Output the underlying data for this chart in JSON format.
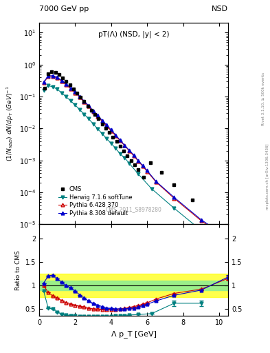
{
  "title_top": "7000 GeV pp",
  "title_right": "NSD",
  "annotation": "pT(Λ) (NSD, |y| < 2)",
  "watermark": "CMS_2011_S8978280",
  "right_label": "mcplots.cern.ch [arXiv:1306.3436]",
  "right_label2": "Rivet 3.1.10, ≥ 500k events",
  "xlabel": "Λ p_T [GeV]",
  "ylabel_main": "(1/N_{NSD}) dN/dp_T (GeV)^{-1}",
  "ylabel_ratio": "Ratio to CMS",
  "cms_x": [
    0.3,
    0.5,
    0.7,
    0.9,
    1.1,
    1.3,
    1.5,
    1.7,
    1.9,
    2.1,
    2.3,
    2.5,
    2.7,
    2.9,
    3.1,
    3.3,
    3.5,
    3.7,
    3.9,
    4.1,
    4.3,
    4.5,
    4.7,
    4.9,
    5.1,
    5.3,
    5.5,
    5.8,
    6.2,
    6.8,
    7.5,
    8.5
  ],
  "cms_y": [
    0.18,
    0.52,
    0.6,
    0.56,
    0.48,
    0.39,
    0.3,
    0.23,
    0.175,
    0.13,
    0.095,
    0.07,
    0.05,
    0.037,
    0.027,
    0.02,
    0.014,
    0.01,
    0.0074,
    0.0054,
    0.0039,
    0.0028,
    0.002,
    0.0014,
    0.001,
    0.00072,
    0.00051,
    0.0003,
    0.00085,
    0.00042,
    0.000175,
    5.8e-05
  ],
  "herwig_x": [
    0.25,
    0.5,
    0.75,
    1.0,
    1.25,
    1.5,
    1.75,
    2.0,
    2.25,
    2.5,
    2.75,
    3.0,
    3.25,
    3.5,
    3.75,
    4.0,
    4.25,
    4.5,
    4.75,
    5.0,
    5.5,
    6.25,
    7.5,
    9.0
  ],
  "herwig_y": [
    0.16,
    0.22,
    0.2,
    0.17,
    0.13,
    0.098,
    0.073,
    0.054,
    0.039,
    0.028,
    0.02,
    0.014,
    0.0098,
    0.0069,
    0.0048,
    0.0034,
    0.0024,
    0.0016,
    0.0012,
    0.00082,
    0.00038,
    0.00013,
    3.2e-05,
    6.5e-06
  ],
  "pythia6_x": [
    0.25,
    0.5,
    0.75,
    1.0,
    1.25,
    1.5,
    1.75,
    2.0,
    2.25,
    2.5,
    2.75,
    3.0,
    3.25,
    3.5,
    3.75,
    4.0,
    4.25,
    4.5,
    4.75,
    5.0,
    5.25,
    5.5,
    5.75,
    6.0,
    6.5,
    7.5,
    9.0,
    10.5
  ],
  "pythia6_y": [
    0.27,
    0.42,
    0.43,
    0.38,
    0.3,
    0.23,
    0.175,
    0.13,
    0.095,
    0.068,
    0.049,
    0.034,
    0.024,
    0.017,
    0.012,
    0.0084,
    0.0059,
    0.0041,
    0.0029,
    0.002,
    0.0014,
    0.00096,
    0.00066,
    0.00045,
    0.00021,
    6.5e-05,
    1.3e-05,
    3.5e-06
  ],
  "pythia8_x": [
    0.25,
    0.5,
    0.75,
    1.0,
    1.25,
    1.5,
    1.75,
    2.0,
    2.25,
    2.5,
    2.75,
    3.0,
    3.25,
    3.5,
    3.75,
    4.0,
    4.25,
    4.5,
    4.75,
    5.0,
    5.25,
    5.5,
    5.75,
    6.0,
    6.5,
    7.5,
    9.0,
    10.5
  ],
  "pythia8_y": [
    0.28,
    0.44,
    0.45,
    0.4,
    0.32,
    0.25,
    0.185,
    0.138,
    0.1,
    0.072,
    0.052,
    0.036,
    0.026,
    0.018,
    0.013,
    0.009,
    0.0063,
    0.0043,
    0.003,
    0.0021,
    0.0015,
    0.001,
    0.0007,
    0.00048,
    0.00022,
    7e-05,
    1.4e-05,
    3.8e-06
  ],
  "herwig_ratio_x": [
    0.25,
    0.5,
    0.75,
    1.0,
    1.25,
    1.5,
    1.75,
    2.0,
    2.25,
    2.5,
    2.75,
    3.0,
    3.25,
    3.5,
    3.75,
    4.0,
    4.25,
    4.5,
    4.75,
    5.0,
    5.5,
    6.25,
    7.5,
    9.0
  ],
  "herwig_ratio_y": [
    0.88,
    0.52,
    0.5,
    0.43,
    0.39,
    0.37,
    0.36,
    0.35,
    0.34,
    0.34,
    0.34,
    0.34,
    0.34,
    0.34,
    0.34,
    0.34,
    0.35,
    0.35,
    0.36,
    0.37,
    0.38,
    0.4,
    0.62,
    0.62
  ],
  "herwig_ratio_yerr": [
    0.0,
    0.0,
    0.0,
    0.0,
    0.0,
    0.0,
    0.0,
    0.0,
    0.0,
    0.0,
    0.0,
    0.0,
    0.0,
    0.0,
    0.0,
    0.0,
    0.0,
    0.0,
    0.0,
    0.0,
    0.0,
    0.0,
    0.06,
    0.06
  ],
  "pythia6_ratio_x": [
    0.25,
    0.5,
    0.75,
    1.0,
    1.25,
    1.5,
    1.75,
    2.0,
    2.25,
    2.5,
    2.75,
    3.0,
    3.25,
    3.5,
    3.75,
    4.0,
    4.25,
    4.5,
    4.75,
    5.0,
    5.25,
    5.5,
    5.75,
    6.0,
    6.5,
    7.5,
    9.0,
    10.5
  ],
  "pythia6_ratio_y": [
    1.0,
    0.85,
    0.78,
    0.73,
    0.68,
    0.63,
    0.61,
    0.58,
    0.56,
    0.54,
    0.52,
    0.5,
    0.5,
    0.49,
    0.49,
    0.49,
    0.49,
    0.5,
    0.51,
    0.53,
    0.55,
    0.57,
    0.6,
    0.63,
    0.71,
    0.83,
    0.92,
    1.15
  ],
  "pythia6_ratio_yerr": [
    0.0,
    0.0,
    0.0,
    0.0,
    0.0,
    0.0,
    0.0,
    0.0,
    0.0,
    0.0,
    0.0,
    0.0,
    0.0,
    0.0,
    0.0,
    0.0,
    0.0,
    0.0,
    0.0,
    0.0,
    0.0,
    0.0,
    0.0,
    0.0,
    0.0,
    0.0,
    0.0,
    0.04
  ],
  "pythia8_ratio_x": [
    0.25,
    0.5,
    0.75,
    1.0,
    1.25,
    1.5,
    1.75,
    2.0,
    2.25,
    2.5,
    2.75,
    3.0,
    3.25,
    3.5,
    3.75,
    4.0,
    4.25,
    4.5,
    4.75,
    5.0,
    5.25,
    5.5,
    5.75,
    6.0,
    6.5,
    7.5,
    9.0,
    10.5
  ],
  "pythia8_ratio_y": [
    1.05,
    1.2,
    1.22,
    1.15,
    1.07,
    1.0,
    0.95,
    0.88,
    0.8,
    0.73,
    0.67,
    0.62,
    0.58,
    0.55,
    0.52,
    0.51,
    0.5,
    0.5,
    0.5,
    0.51,
    0.52,
    0.54,
    0.57,
    0.6,
    0.67,
    0.79,
    0.9,
    1.18
  ],
  "pythia8_ratio_yerr": [
    0.0,
    0.0,
    0.0,
    0.0,
    0.0,
    0.0,
    0.0,
    0.0,
    0.0,
    0.0,
    0.0,
    0.0,
    0.0,
    0.0,
    0.0,
    0.0,
    0.0,
    0.0,
    0.0,
    0.0,
    0.0,
    0.0,
    0.0,
    0.0,
    0.0,
    0.0,
    0.0,
    0.04
  ],
  "cms_color": "#000000",
  "herwig_color": "#008080",
  "pythia6_color": "#cc0000",
  "pythia8_color": "#0000cc",
  "band_green_low": 0.9,
  "band_green_high": 1.1,
  "band_yellow_low": 0.75,
  "band_yellow_high": 1.25,
  "xlim": [
    0,
    10.5
  ],
  "ylim_ratio": [
    0.35,
    2.3
  ]
}
